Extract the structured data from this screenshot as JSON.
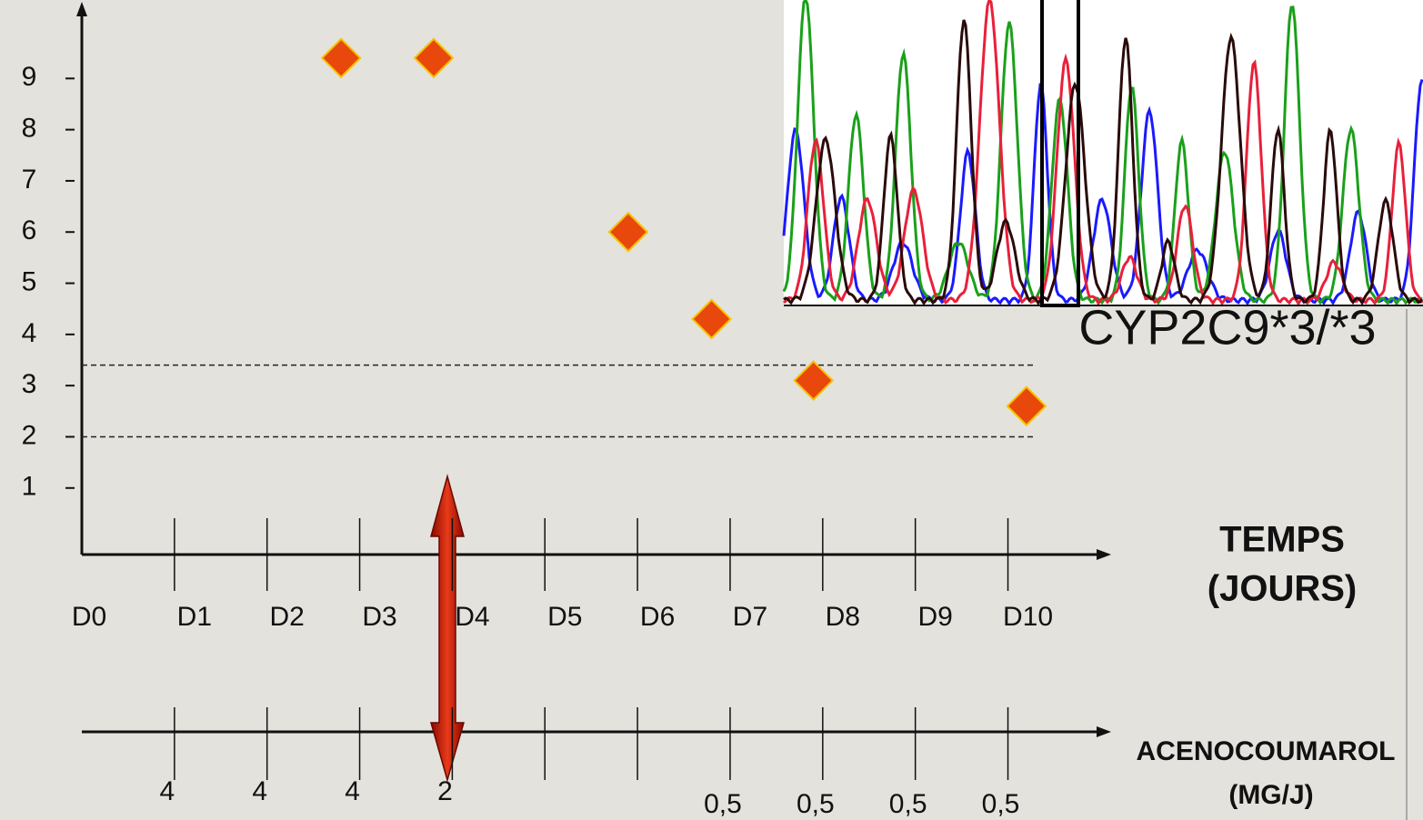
{
  "chart_data": {
    "type": "scatter",
    "x": [
      2.8,
      3.8,
      5.9,
      6.8,
      7.9,
      10.2
    ],
    "values": [
      9.4,
      9.4,
      6,
      4.3,
      3.1,
      2.6
    ],
    "color": "#e8480c",
    "xlim": [
      0,
      10.8
    ],
    "ylim": [
      -0.3,
      10
    ],
    "xticks": [
      {
        "value": 0,
        "label": "D0"
      },
      {
        "value": 1,
        "label": "D1"
      },
      {
        "value": 2,
        "label": "D2"
      },
      {
        "value": 3,
        "label": "D3"
      },
      {
        "value": 4,
        "label": "D4"
      },
      {
        "value": 5,
        "label": "D5"
      },
      {
        "value": 6,
        "label": "D6"
      },
      {
        "value": 7,
        "label": "D7"
      },
      {
        "value": 8,
        "label": "D8"
      },
      {
        "value": 9,
        "label": "D9"
      },
      {
        "value": 10,
        "label": "D10"
      }
    ],
    "yticks": [
      1,
      2,
      3,
      4,
      5,
      6,
      7,
      8,
      9
    ],
    "reference_lines": [
      3.4,
      2
    ],
    "x_label": [
      "TEMPS",
      "(JOURS)"
    ],
    "annotation": "CYP2C9*3/*3",
    "dose": {
      "label": [
        "ACENOCOUMAROL",
        "(MG/J)"
      ],
      "days": [
        1,
        2,
        3,
        4,
        7,
        8,
        9,
        10
      ],
      "values": [
        4,
        4,
        4,
        2,
        0.5,
        0.5,
        0.5,
        0.5
      ],
      "value_labels": [
        "4",
        "4",
        "4",
        "2",
        "0,5",
        "0,5",
        "0,5",
        "0,5"
      ]
    }
  }
}
